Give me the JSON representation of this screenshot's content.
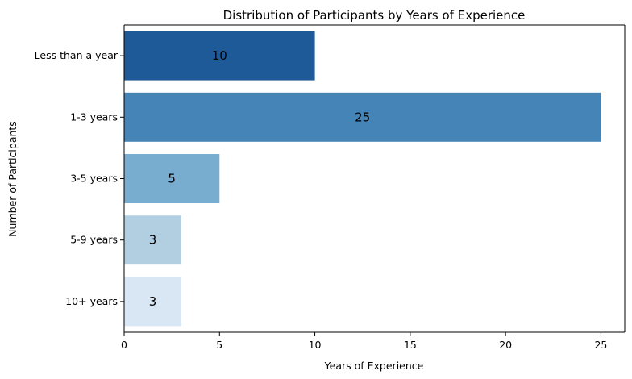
{
  "chart_data": {
    "type": "bar",
    "orientation": "horizontal",
    "title": "Distribution of Participants by Years of Experience",
    "xlabel": "Years of Experience",
    "ylabel": "Number of Participants",
    "categories": [
      "Less than a year",
      "1-3 years",
      "3-5 years",
      "5-9 years",
      "10+ years"
    ],
    "values": [
      10,
      25,
      5,
      3,
      3
    ],
    "data_labels": [
      "10",
      "25",
      "5",
      "3",
      "3"
    ],
    "colors": [
      "#1f5a98",
      "#4484b6",
      "#78adcf",
      "#b2cfe2",
      "#d9e6f3"
    ],
    "xlim": [
      0,
      26.25
    ],
    "xticks": [
      0,
      5,
      10,
      15,
      20,
      25
    ],
    "xtick_labels": [
      "0",
      "5",
      "10",
      "15",
      "20",
      "25"
    ],
    "grid": false,
    "legend": "none"
  }
}
